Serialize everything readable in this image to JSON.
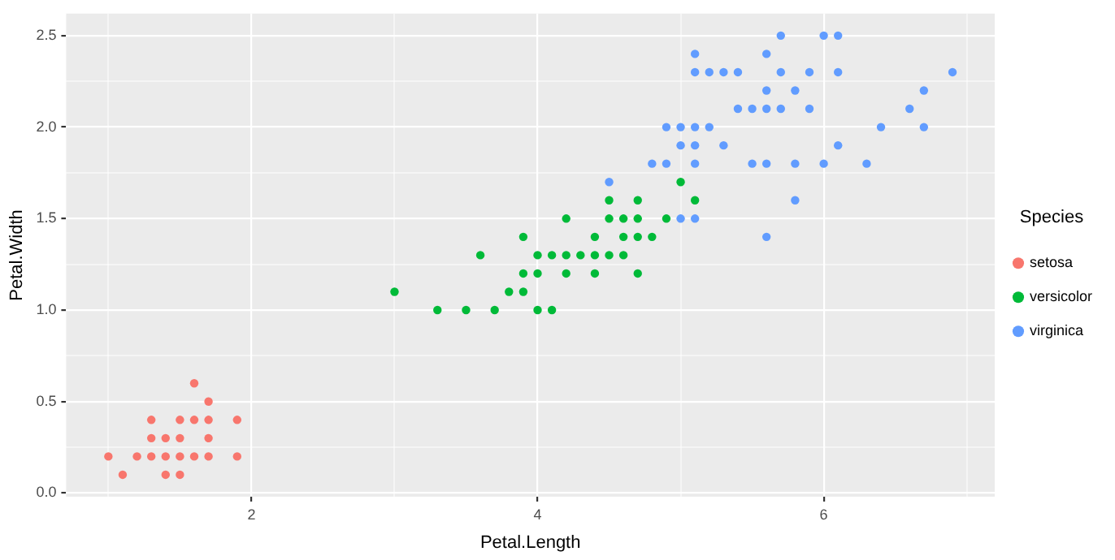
{
  "chart_data": {
    "type": "scatter",
    "xlabel": "Petal.Length",
    "ylabel": "Petal.Width",
    "legend_title": "Species",
    "legend": "right",
    "grid": true,
    "marker": "circle",
    "xlim": [
      0.705,
      7.195
    ],
    "ylim": [
      -0.02,
      2.62
    ],
    "xticks": [
      {
        "value": 1,
        "label": null
      },
      2,
      {
        "value": 3,
        "label": null
      },
      4,
      {
        "value": 5,
        "label": null
      },
      6,
      {
        "value": 7,
        "label": null
      }
    ],
    "yticks": [
      {
        "value": 0,
        "label": "0.0"
      },
      {
        "value": 0.25,
        "label": null
      },
      {
        "value": 0.5,
        "label": "0.5"
      },
      {
        "value": 0.75,
        "label": null
      },
      {
        "value": 1,
        "label": "1.0"
      },
      {
        "value": 1.25,
        "label": null
      },
      {
        "value": 1.5,
        "label": "1.5"
      },
      {
        "value": 1.75,
        "label": null
      },
      {
        "value": 2,
        "label": "2.0"
      },
      {
        "value": 2.25,
        "label": null
      },
      {
        "value": 2.5,
        "label": "2.5"
      }
    ],
    "series": [
      {
        "name": "setosa",
        "color": "#f8766d",
        "x": [
          1.0,
          1.1,
          1.2,
          1.3,
          1.3,
          1.3,
          1.4,
          1.4,
          1.4,
          1.5,
          1.5,
          1.5,
          1.5,
          1.6,
          1.6,
          1.6,
          1.7,
          1.7,
          1.7,
          1.7,
          1.9,
          1.9
        ],
        "values": [
          0.2,
          0.1,
          0.2,
          0.2,
          0.3,
          0.4,
          0.1,
          0.2,
          0.3,
          0.1,
          0.2,
          0.3,
          0.4,
          0.2,
          0.4,
          0.6,
          0.2,
          0.3,
          0.4,
          0.5,
          0.2,
          0.4
        ]
      },
      {
        "name": "versicolor",
        "color": "#00ba38",
        "x": [
          4.7,
          4.5,
          4.9,
          4.0,
          4.6,
          4.5,
          4.7,
          3.3,
          4.6,
          3.9,
          3.5,
          4.2,
          4.0,
          3.6,
          4.4,
          4.1,
          3.9,
          4.7,
          4.3,
          4.8,
          5.0,
          3.8,
          3.7,
          3.9,
          5.1,
          4.5,
          4.7,
          4.4,
          4.1,
          4.4,
          4.6,
          4.0,
          4.2,
          4.2,
          3.0
        ],
        "values": [
          1.4,
          1.5,
          1.5,
          1.3,
          1.5,
          1.3,
          1.6,
          1.0,
          1.3,
          1.4,
          1.0,
          1.5,
          1.0,
          1.3,
          1.4,
          1.0,
          1.1,
          1.2,
          1.3,
          1.4,
          1.7,
          1.1,
          1.0,
          1.2,
          1.6,
          1.6,
          1.5,
          1.3,
          1.3,
          1.2,
          1.4,
          1.2,
          1.3,
          1.2,
          1.1
        ]
      },
      {
        "name": "virginica",
        "color": "#619cff",
        "x": [
          6.0,
          5.1,
          5.9,
          5.6,
          5.8,
          6.6,
          4.5,
          6.3,
          5.8,
          6.1,
          5.1,
          5.3,
          5.5,
          5.0,
          5.1,
          5.3,
          5.5,
          6.7,
          6.9,
          5.0,
          5.7,
          4.9,
          6.7,
          4.9,
          5.7,
          6.0,
          4.8,
          5.6,
          5.8,
          6.1,
          6.4,
          5.6,
          5.1,
          5.6,
          6.1,
          5.6,
          5.4,
          5.1,
          5.9,
          5.7,
          5.2,
          5.0,
          5.2,
          5.4,
          5.1
        ],
        "values": [
          2.5,
          1.9,
          2.1,
          1.8,
          2.2,
          2.1,
          1.7,
          1.8,
          1.8,
          2.5,
          2.0,
          1.9,
          2.1,
          2.0,
          2.4,
          2.3,
          1.8,
          2.2,
          2.3,
          1.5,
          2.3,
          2.0,
          2.0,
          1.8,
          2.1,
          1.8,
          1.8,
          2.1,
          1.6,
          1.9,
          2.0,
          2.2,
          1.5,
          1.4,
          2.3,
          2.4,
          2.1,
          2.3,
          2.3,
          2.5,
          2.3,
          1.9,
          2.0,
          2.3,
          1.8
        ]
      }
    ]
  }
}
